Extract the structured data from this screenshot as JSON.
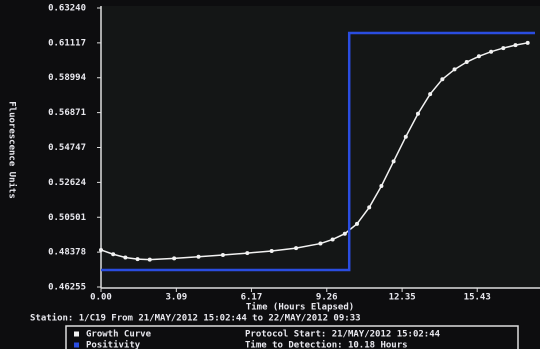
{
  "chart_data": {
    "type": "line",
    "y_label": "Fluorescence Units",
    "x_label": "Time (Hours Elapsed)",
    "footer": "Station: 1/C19 From 21/MAY/2012 15:02:44 to 22/MAY/2012 09:33",
    "info": [
      "Protocol Start: 21/MAY/2012 15:02:44",
      "Time to Detection: 10.18 Hours"
    ],
    "xlim": [
      0,
      17.8
    ],
    "ylim": [
      0.46255,
      0.6324
    ],
    "xticks": [
      {
        "value": 0,
        "label": "0.00"
      },
      3.09,
      6.17,
      9.26,
      12.35,
      15.43
    ],
    "yticks": [
      0.46255,
      0.48378,
      0.50501,
      0.52624,
      0.54747,
      0.56871,
      0.58994,
      0.61117,
      {
        "value": 0.6324,
        "label": "0.63240"
      }
    ],
    "series": [
      {
        "name": "Growth Curve",
        "color": "#f2f2f2",
        "markers": true,
        "x": [
          0,
          0.5,
          1,
          1.5,
          2,
          3,
          4,
          5,
          6,
          7,
          8,
          9,
          9.5,
          10,
          10.5,
          11,
          11.5,
          12,
          12.5,
          13,
          13.5,
          14,
          14.5,
          15,
          15.5,
          16,
          16.5,
          17,
          17.5
        ],
        "values": [
          0.4851,
          0.4825,
          0.4805,
          0.4795,
          0.4792,
          0.48,
          0.481,
          0.482,
          0.4832,
          0.4845,
          0.4862,
          0.489,
          0.4915,
          0.495,
          0.501,
          0.511,
          0.524,
          0.539,
          0.554,
          0.568,
          0.58,
          0.589,
          0.595,
          0.5995,
          0.603,
          0.6058,
          0.608,
          0.6098,
          0.6112
        ]
      },
      {
        "name": "Positivity",
        "color": "#2a4de0",
        "markers": false,
        "x": [
          0,
          10.18,
          10.18,
          17.8
        ],
        "values": [
          0.4729,
          0.4729,
          0.6172,
          0.6172
        ]
      }
    ]
  }
}
